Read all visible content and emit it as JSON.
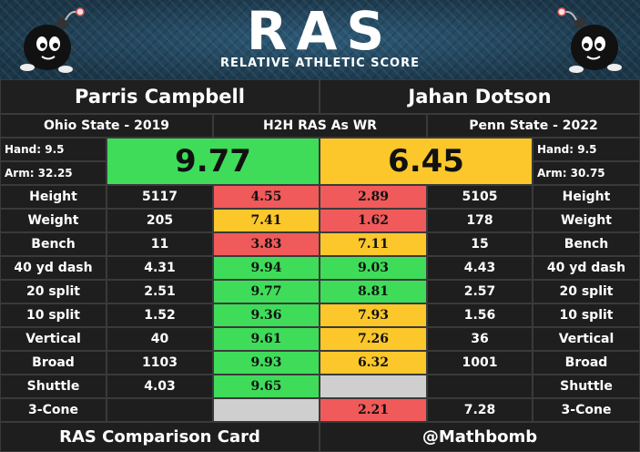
{
  "banner": {
    "logo": "RAS",
    "subtitle": "RELATIVE ATHLETIC SCORE",
    "mascot_icon": "bomb-mascot-icon"
  },
  "players": {
    "left": {
      "name": "Parris Campbell",
      "school": "Ohio State - 2019",
      "hand": "Hand: 9.5",
      "arm": "Arm: 32.25",
      "ras": "9.77",
      "ras_color": "#3fdc5a"
    },
    "right": {
      "name": "Jahan Dotson",
      "school": "Penn State - 2022",
      "hand": "Hand: 9.5",
      "arm": "Arm: 30.75",
      "ras": "6.45",
      "ras_color": "#fcc72b"
    }
  },
  "center_header": "H2H RAS As WR",
  "rows": [
    {
      "label": "Height",
      "left_raw": "5117",
      "left_score": "4.55",
      "left_color": "red",
      "right_score": "2.89",
      "right_color": "red",
      "right_raw": "5105"
    },
    {
      "label": "Weight",
      "left_raw": "205",
      "left_score": "7.41",
      "left_color": "yellow",
      "right_score": "1.62",
      "right_color": "red",
      "right_raw": "178"
    },
    {
      "label": "Bench",
      "left_raw": "11",
      "left_score": "3.83",
      "left_color": "red",
      "right_score": "7.11",
      "right_color": "yellow",
      "right_raw": "15"
    },
    {
      "label": "40 yd dash",
      "left_raw": "4.31",
      "left_score": "9.94",
      "left_color": "green",
      "right_score": "9.03",
      "right_color": "green",
      "right_raw": "4.43"
    },
    {
      "label": "20 split",
      "left_raw": "2.51",
      "left_score": "9.77",
      "left_color": "green",
      "right_score": "8.81",
      "right_color": "green",
      "right_raw": "2.57"
    },
    {
      "label": "10 split",
      "left_raw": "1.52",
      "left_score": "9.36",
      "left_color": "green",
      "right_score": "7.93",
      "right_color": "yellow",
      "right_raw": "1.56"
    },
    {
      "label": "Vertical",
      "left_raw": "40",
      "left_score": "9.61",
      "left_color": "green",
      "right_score": "7.26",
      "right_color": "yellow",
      "right_raw": "36"
    },
    {
      "label": "Broad",
      "left_raw": "1103",
      "left_score": "9.93",
      "left_color": "green",
      "right_score": "6.32",
      "right_color": "yellow",
      "right_raw": "1001"
    },
    {
      "label": "Shuttle",
      "left_raw": "4.03",
      "left_score": "9.65",
      "left_color": "green",
      "right_score": "",
      "right_color": "gray",
      "right_raw": ""
    },
    {
      "label": "3-Cone",
      "left_raw": "",
      "left_score": "",
      "left_color": "gray",
      "right_score": "2.21",
      "right_color": "red",
      "right_raw": "7.28"
    }
  ],
  "footer": {
    "left": "RAS Comparison Card",
    "right": "@Mathbomb"
  },
  "colors": {
    "green": "#3fdc5a",
    "red": "#f15a5a",
    "yellow": "#fcc72b",
    "gray": "#cfcfcf",
    "banner": "#1d3d52"
  }
}
